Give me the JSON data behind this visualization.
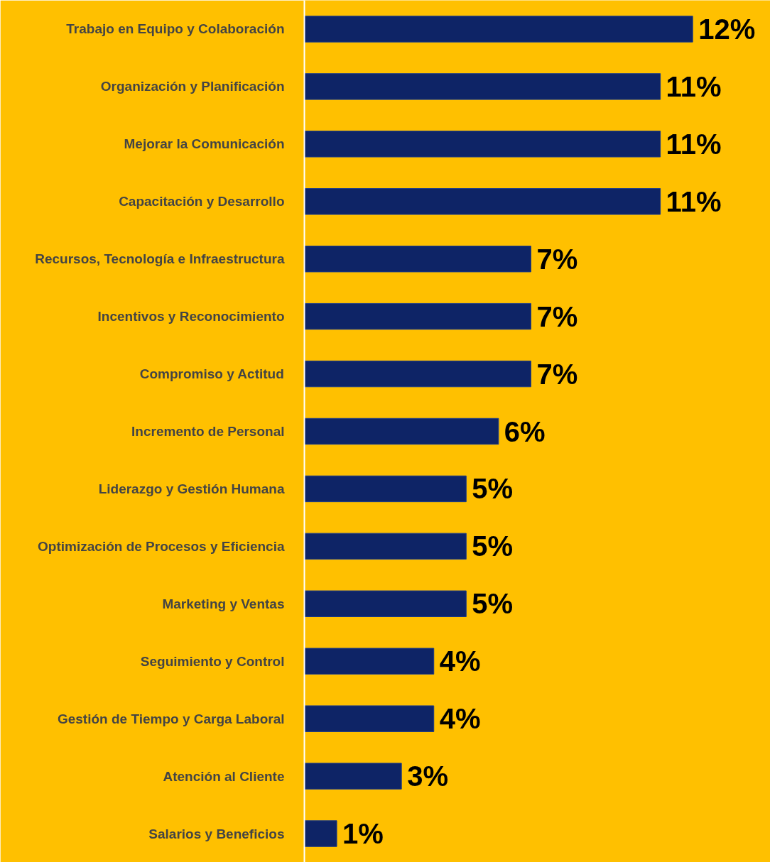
{
  "chart_data": {
    "type": "bar",
    "orientation": "horizontal",
    "categories": [
      "Trabajo en Equipo y Colaboración",
      "Organización y Planificación",
      "Mejorar la Comunicación",
      "Capacitación y Desarrollo",
      "Recursos, Tecnología e Infraestructura",
      "Incentivos y Reconocimiento",
      "Compromiso y Actitud",
      "Incremento de Personal",
      "Liderazgo y Gestión Humana",
      "Optimización de Procesos y Eficiencia",
      "Marketing y Ventas",
      "Seguimiento y Control",
      "Gestión de Tiempo y Carga Laboral",
      "Atención al Cliente",
      "Salarios y Beneficios"
    ],
    "values": [
      12,
      11,
      11,
      11,
      7,
      7,
      7,
      6,
      5,
      5,
      5,
      4,
      4,
      3,
      1
    ],
    "value_labels": [
      "12%",
      "11%",
      "11%",
      "11%",
      "7%",
      "7%",
      "7%",
      "6%",
      "5%",
      "5%",
      "5%",
      "4%",
      "4%",
      "3%",
      "1%"
    ],
    "color": "#0e2466"
  }
}
